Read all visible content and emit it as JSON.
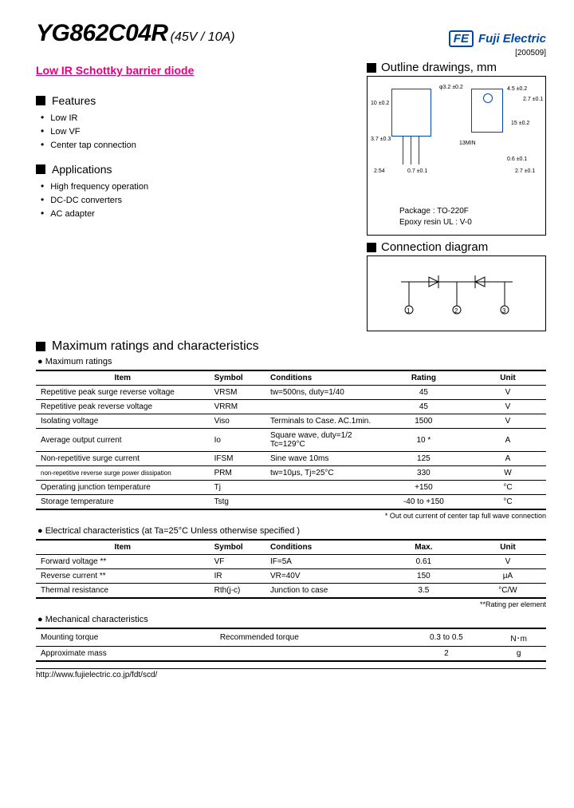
{
  "header": {
    "part_no": "YG862C04R",
    "spec": "(45V / 10A)",
    "brand_code": "FE",
    "brand_name": "Fuji Electric",
    "doc_id": "[200509]"
  },
  "product_title": "Low IR Schottky barrier diode",
  "features": {
    "title": "Features",
    "items": [
      "Low IR",
      "Low VF",
      "Center tap connection"
    ]
  },
  "applications": {
    "title": "Applications",
    "items": [
      "High frequency operation",
      "DC-DC converters",
      "AC adapter"
    ]
  },
  "outline": {
    "title": "Outline  drawings,  mm",
    "package": "Package  :  TO-220F",
    "resin": "Epoxy resin  UL : V-0"
  },
  "connection": {
    "title": "Connection diagram"
  },
  "max_ratings": {
    "title": "Maximum ratings and characteristics",
    "sub": "● Maximum ratings",
    "cols": [
      "Item",
      "Symbol",
      "Conditions",
      "Rating",
      "Unit"
    ],
    "rows": [
      [
        "Repetitive peak surge reverse voltage",
        "VRSM",
        "tw=500ns, duty=1/40",
        "45",
        "V"
      ],
      [
        "Repetitive peak reverse voltage",
        "VRRM",
        "",
        "45",
        "V"
      ],
      [
        "Isolating voltage",
        "Viso",
        "Terminals to Case. AC.1min.",
        "1500",
        "V"
      ],
      [
        "Average output current",
        "Io",
        "Square wave, duty=1/2 Tc=129°C",
        "10  *",
        "A"
      ],
      [
        "Non-repetitive surge current",
        "IFSM",
        "Sine  wave  10ms",
        "125",
        "A"
      ],
      [
        "non-repetitive reverse surge power dissipation",
        "PRM",
        "tw=10μs, Tj=25°C",
        "330",
        "W"
      ],
      [
        "Operating junction temperature",
        "Tj",
        "",
        "+150",
        "°C"
      ],
      [
        "Storage temperature",
        "Tstg",
        "",
        "-40  to +150",
        "°C"
      ]
    ],
    "note": "* Out out current of center tap full wave connection"
  },
  "elec": {
    "sub": "● Electrical  characteristics  (at Ta=25°C Unless otherwise specified )",
    "cols": [
      "Item",
      "Symbol",
      "Conditions",
      "Max.",
      "Unit"
    ],
    "rows": [
      [
        "Forward voltage **",
        "VF",
        "IF=5A",
        "0.61",
        "V"
      ],
      [
        "Reverse current **",
        "IR",
        "VR=40V",
        "150",
        "μA"
      ],
      [
        "Thermal resistance",
        "Rth(j-c)",
        "Junction to case",
        "3.5",
        "°C/W"
      ]
    ],
    "note": "**Rating per element"
  },
  "mech": {
    "sub": "● Mechanical  characteristics",
    "rows": [
      [
        "Mounting torque",
        "",
        "Recommended torque",
        "0.3 to 0.5",
        "N･m"
      ],
      [
        "Approximate mass",
        "",
        "",
        "2",
        "g"
      ]
    ]
  },
  "footer": "http://www.fujielectric.co.jp/fdt/scd/"
}
